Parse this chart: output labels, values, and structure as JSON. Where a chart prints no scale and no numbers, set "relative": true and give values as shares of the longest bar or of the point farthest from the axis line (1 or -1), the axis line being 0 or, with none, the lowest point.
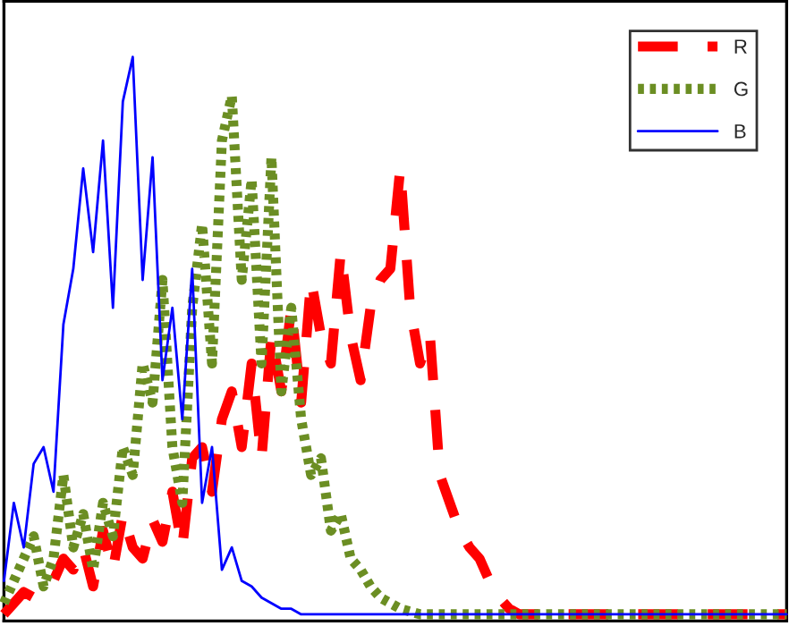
{
  "chart_data": {
    "type": "line",
    "relative": true,
    "legend": "top right",
    "marker": "none",
    "categories": [
      null,
      null,
      null,
      null,
      null,
      null,
      null,
      null,
      null,
      null,
      null,
      null,
      null,
      null,
      null,
      null,
      null,
      null,
      null,
      null,
      null,
      null,
      null,
      null,
      null,
      null,
      null,
      null,
      null,
      null,
      null,
      null,
      null,
      null,
      null,
      null,
      null,
      null,
      null,
      null,
      null,
      null,
      null,
      null,
      null,
      null,
      null,
      null,
      null,
      null,
      null,
      null,
      null,
      null,
      null,
      null,
      null,
      null,
      null,
      null,
      null,
      null,
      null,
      null,
      null,
      null,
      null,
      null,
      null,
      null,
      null,
      null,
      null,
      null,
      null,
      null,
      null,
      null,
      null,
      null
    ],
    "series": [
      {
        "name": "R",
        "color": "#ff0000",
        "line_style": "dashed",
        "values": [
          0,
          0.02,
          0.04,
          0.03,
          0.05,
          0.06,
          0.1,
          0.08,
          0.12,
          0.05,
          0.15,
          0.08,
          0.18,
          0.12,
          0.1,
          0.17,
          0.13,
          0.22,
          0.12,
          0.28,
          0.3,
          0.22,
          0.35,
          0.4,
          0.3,
          0.45,
          0.28,
          0.5,
          0.4,
          0.55,
          0.38,
          0.6,
          0.5,
          0.45,
          0.65,
          0.5,
          0.42,
          0.55,
          0.6,
          0.62,
          0.8,
          0.55,
          0.45,
          0.5,
          0.25,
          0.2,
          0.15,
          0.12,
          0.1,
          0.06,
          0.03,
          0.01,
          0,
          0,
          0,
          0,
          0,
          0,
          0,
          0,
          0,
          0,
          0,
          0,
          0,
          0,
          0,
          0,
          0,
          0,
          0,
          0,
          0,
          0,
          0,
          0,
          0,
          0,
          0,
          0
        ]
      },
      {
        "name": "G",
        "color": "#6b8e23",
        "line_style": "dotted",
        "values": [
          0.02,
          0.06,
          0.1,
          0.14,
          0.05,
          0.1,
          0.25,
          0.12,
          0.18,
          0.08,
          0.2,
          0.14,
          0.3,
          0.25,
          0.45,
          0.38,
          0.6,
          0.3,
          0.2,
          0.55,
          0.7,
          0.45,
          0.85,
          0.93,
          0.6,
          0.78,
          0.45,
          0.82,
          0.4,
          0.55,
          0.35,
          0.25,
          0.28,
          0.15,
          0.18,
          0.1,
          0.08,
          0.05,
          0.03,
          0.02,
          0.01,
          0.005,
          0,
          0,
          0,
          0,
          0,
          0,
          0,
          0,
          0,
          0,
          0,
          0,
          0,
          0,
          0,
          0,
          0,
          0,
          0,
          0,
          0,
          0,
          0,
          0,
          0,
          0,
          0,
          0,
          0,
          0,
          0,
          0,
          0,
          0,
          0,
          0,
          0,
          0
        ]
      },
      {
        "name": "B",
        "color": "#0000ff",
        "line_style": "solid",
        "values": [
          0.06,
          0.2,
          0.12,
          0.27,
          0.3,
          0.22,
          0.52,
          0.62,
          0.8,
          0.65,
          0.85,
          0.55,
          0.92,
          1.0,
          0.6,
          0.82,
          0.42,
          0.55,
          0.35,
          0.62,
          0.2,
          0.3,
          0.08,
          0.12,
          0.06,
          0.05,
          0.03,
          0.02,
          0.01,
          0.01,
          0,
          0,
          0,
          0,
          0,
          0,
          0,
          0,
          0,
          0,
          0,
          0,
          0,
          0,
          0,
          0,
          0,
          0,
          0,
          0,
          0,
          0,
          0,
          0,
          0,
          0,
          0,
          0,
          0,
          0,
          0,
          0,
          0,
          0,
          0,
          0,
          0,
          0,
          0,
          0,
          0,
          0,
          0,
          0,
          0,
          0,
          0,
          0,
          0,
          0
        ]
      }
    ]
  }
}
